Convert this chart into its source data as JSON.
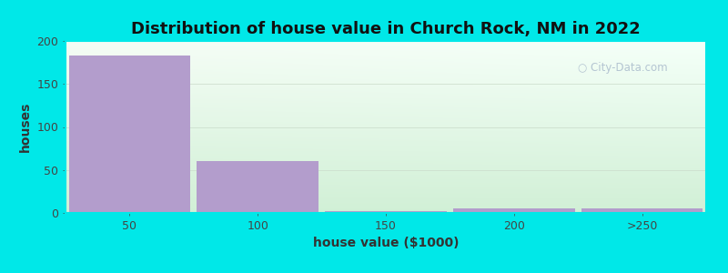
{
  "title": "Distribution of house value in Church Rock, NM in 2022",
  "xlabel": "house value ($1000)",
  "ylabel": "houses",
  "categories": [
    "50",
    "100",
    "150",
    "200",
    ">250"
  ],
  "values": [
    183,
    60,
    2,
    5,
    5
  ],
  "bar_color": "#b39dcc",
  "bar_edgecolor": "#b39dcc",
  "ylim": [
    0,
    200
  ],
  "yticks": [
    0,
    50,
    100,
    150,
    200
  ],
  "background_outer": "#00e8e8",
  "grid_color": "#ccddcc",
  "title_fontsize": 13,
  "axis_label_fontsize": 10,
  "tick_fontsize": 9,
  "bar_width": 0.95,
  "watermark": "City-Data.com",
  "watermark_color": "#aabbcc"
}
